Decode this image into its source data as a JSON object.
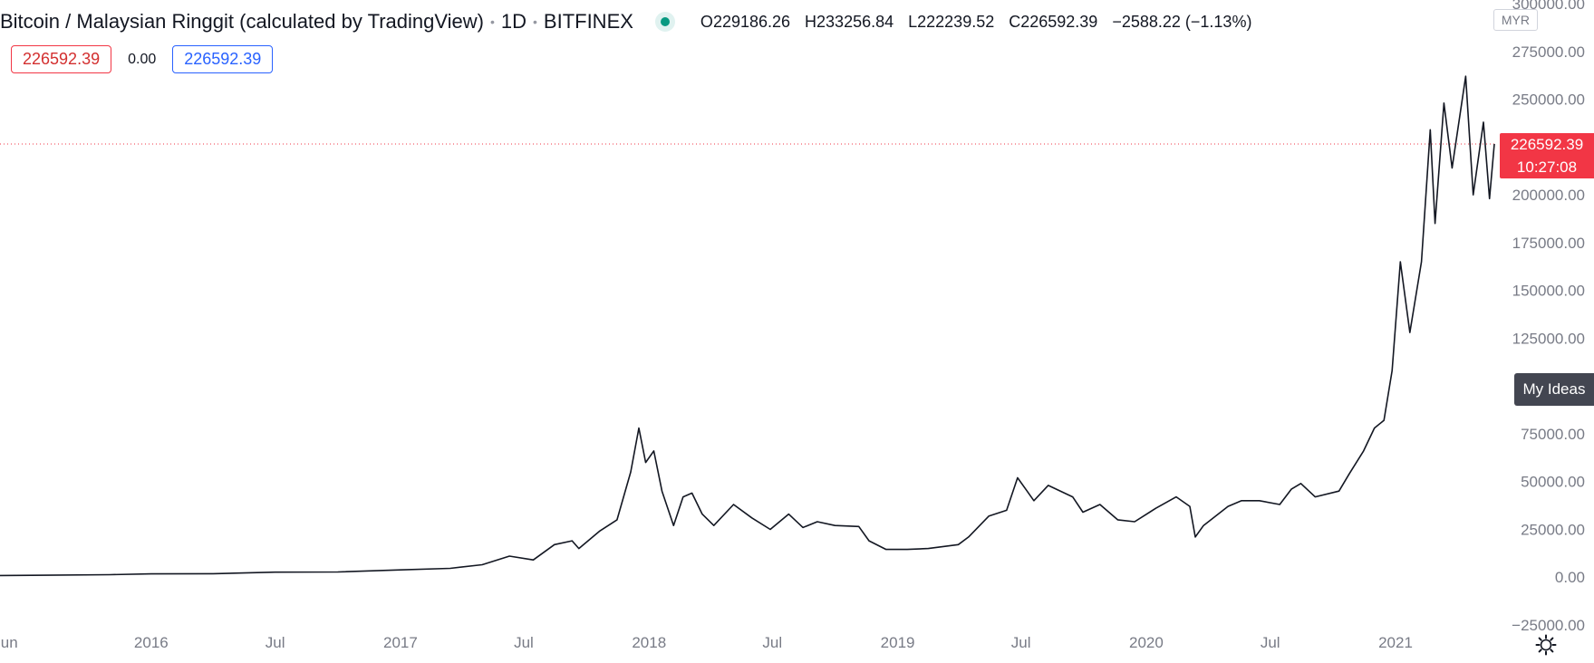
{
  "header": {
    "title": "Bitcoin / Malaysian Ringgit (calculated by TradingView)",
    "interval": "1D",
    "exchange": "BITFINEX",
    "ohlc": {
      "o_label": "O",
      "o_value": "229186.26",
      "h_label": "H",
      "h_value": "233256.84",
      "l_label": "L",
      "l_value": "222239.52",
      "c_label": "C",
      "c_value": "226592.39",
      "change": "−2588.22 (−1.13%)"
    },
    "status_color": "#089981"
  },
  "trade": {
    "sell_price": "226592.39",
    "spread": "0.00",
    "buy_price": "226592.39"
  },
  "axis": {
    "currency": "MYR",
    "last_price_label": "226592.39",
    "countdown": "10:27:08",
    "my_ideas": "My Ideas"
  },
  "colors": {
    "accent_red": "#f23645",
    "accent_blue": "#2962ff",
    "candle": "#131722",
    "axis_text": "#787b86"
  },
  "chart_data": {
    "type": "line",
    "symbol": "BTCMYR",
    "y_scale": "linear",
    "ylim": [
      -25000,
      300000
    ],
    "y_ticks": [
      300000,
      275000,
      250000,
      225000,
      200000,
      175000,
      150000,
      125000,
      100000,
      75000,
      50000,
      25000,
      0,
      -25000
    ],
    "y_tick_labels": [
      "300000.00",
      "275000.00",
      "250000.00",
      "",
      "200000.00",
      "175000.00",
      "150000.00",
      "125000.00",
      "",
      "75000.00",
      "50000.00",
      "25000.00",
      "0.00",
      "−25000.00"
    ],
    "last_price": 226592.39,
    "x_ticks": [
      {
        "date": "2015-06-01",
        "label": "Jun"
      },
      {
        "date": "2016-01-01",
        "label": "2016"
      },
      {
        "date": "2016-07-01",
        "label": "Jul"
      },
      {
        "date": "2017-01-01",
        "label": "2017"
      },
      {
        "date": "2017-07-01",
        "label": "Jul"
      },
      {
        "date": "2018-01-01",
        "label": "2018"
      },
      {
        "date": "2018-07-01",
        "label": "Jul"
      },
      {
        "date": "2019-01-01",
        "label": "2019"
      },
      {
        "date": "2019-07-01",
        "label": "Jul"
      },
      {
        "date": "2020-01-01",
        "label": "2020"
      },
      {
        "date": "2020-07-01",
        "label": "Jul"
      },
      {
        "date": "2021-01-01",
        "label": "2021"
      }
    ],
    "x_range": [
      "2015-06-01",
      "2021-05-26"
    ],
    "series": [
      {
        "values": [
          [
            "2015-05-15",
            860
          ],
          [
            "2015-08-01",
            1000
          ],
          [
            "2015-11-01",
            1300
          ],
          [
            "2016-01-01",
            1700
          ],
          [
            "2016-04-01",
            1800
          ],
          [
            "2016-07-01",
            2600
          ],
          [
            "2016-10-01",
            2700
          ],
          [
            "2017-01-01",
            3800
          ],
          [
            "2017-03-15",
            4600
          ],
          [
            "2017-05-01",
            6500
          ],
          [
            "2017-06-10",
            11000
          ],
          [
            "2017-07-15",
            9000
          ],
          [
            "2017-08-15",
            17000
          ],
          [
            "2017-09-10",
            19000
          ],
          [
            "2017-09-20",
            15000
          ],
          [
            "2017-10-20",
            24000
          ],
          [
            "2017-11-15",
            30000
          ],
          [
            "2017-12-05",
            55000
          ],
          [
            "2017-12-17",
            78000
          ],
          [
            "2017-12-27",
            60000
          ],
          [
            "2018-01-08",
            66000
          ],
          [
            "2018-01-20",
            45000
          ],
          [
            "2018-02-06",
            27000
          ],
          [
            "2018-02-20",
            42000
          ],
          [
            "2018-03-05",
            44000
          ],
          [
            "2018-03-20",
            33000
          ],
          [
            "2018-04-06",
            27000
          ],
          [
            "2018-05-05",
            38000
          ],
          [
            "2018-06-01",
            31000
          ],
          [
            "2018-06-28",
            25000
          ],
          [
            "2018-07-25",
            33000
          ],
          [
            "2018-08-15",
            26000
          ],
          [
            "2018-09-05",
            29000
          ],
          [
            "2018-10-01",
            27000
          ],
          [
            "2018-11-05",
            26500
          ],
          [
            "2018-11-20",
            19000
          ],
          [
            "2018-12-15",
            14500
          ],
          [
            "2019-01-15",
            14500
          ],
          [
            "2019-02-15",
            15000
          ],
          [
            "2019-03-31",
            17000
          ],
          [
            "2019-04-15",
            21000
          ],
          [
            "2019-05-15",
            32000
          ],
          [
            "2019-06-10",
            35000
          ],
          [
            "2019-06-26",
            52000
          ],
          [
            "2019-07-10",
            45000
          ],
          [
            "2019-07-20",
            40000
          ],
          [
            "2019-08-10",
            48000
          ],
          [
            "2019-09-15",
            42000
          ],
          [
            "2019-09-30",
            34000
          ],
          [
            "2019-10-25",
            38000
          ],
          [
            "2019-11-20",
            30000
          ],
          [
            "2019-12-15",
            29000
          ],
          [
            "2020-01-15",
            36000
          ],
          [
            "2020-02-14",
            42000
          ],
          [
            "2020-03-05",
            37000
          ],
          [
            "2020-03-13",
            21000
          ],
          [
            "2020-03-25",
            27000
          ],
          [
            "2020-04-30",
            37000
          ],
          [
            "2020-05-20",
            40000
          ],
          [
            "2020-06-15",
            40000
          ],
          [
            "2020-07-15",
            38000
          ],
          [
            "2020-08-01",
            46000
          ],
          [
            "2020-08-15",
            49000
          ],
          [
            "2020-09-05",
            42000
          ],
          [
            "2020-10-10",
            45000
          ],
          [
            "2020-10-25",
            54000
          ],
          [
            "2020-11-15",
            66000
          ],
          [
            "2020-12-01",
            78000
          ],
          [
            "2020-12-15",
            82000
          ],
          [
            "2020-12-27",
            108000
          ],
          [
            "2021-01-08",
            165000
          ],
          [
            "2021-01-22",
            128000
          ],
          [
            "2021-02-08",
            165000
          ],
          [
            "2021-02-21",
            234000
          ],
          [
            "2021-02-28",
            185000
          ],
          [
            "2021-03-13",
            248000
          ],
          [
            "2021-03-25",
            214000
          ],
          [
            "2021-04-14",
            262000
          ],
          [
            "2021-04-25",
            200000
          ],
          [
            "2021-05-10",
            238000
          ],
          [
            "2021-05-19",
            198000
          ],
          [
            "2021-05-26",
            226592.39
          ]
        ]
      }
    ]
  }
}
